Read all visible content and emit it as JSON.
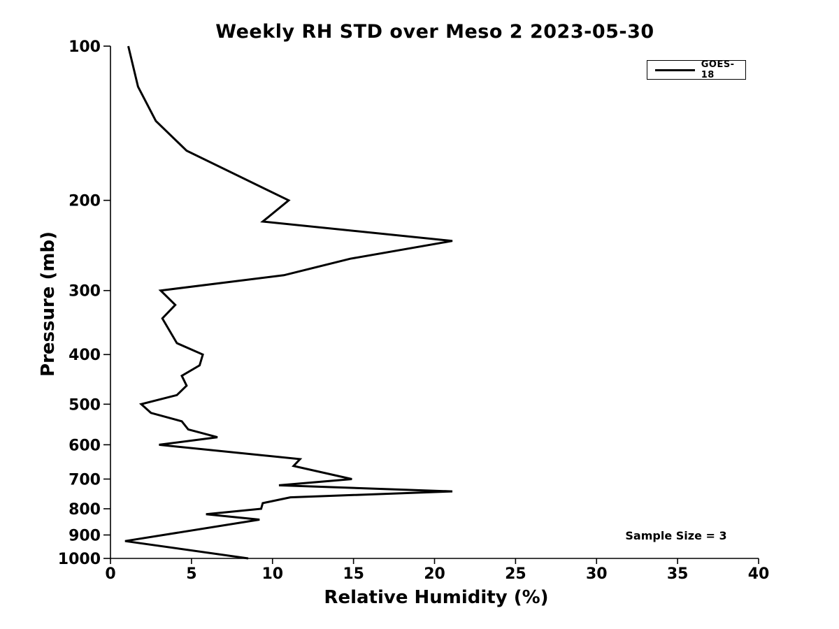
{
  "chart_data": {
    "type": "line",
    "title": "Weekly RH STD over Meso 2 2023-05-30",
    "xlabel": "Relative Humidity (%)",
    "ylabel": "Pressure (mb)",
    "xlim": [
      0,
      40
    ],
    "xticks": [
      0,
      5,
      10,
      15,
      20,
      25,
      30,
      35,
      40
    ],
    "ylim": [
      100,
      1000
    ],
    "yticks": [
      100,
      200,
      300,
      400,
      500,
      600,
      700,
      800,
      900,
      1000
    ],
    "yscale": "log",
    "y_inverted": true,
    "grid": false,
    "line_color": "#000000",
    "line_width": 3,
    "legend": {
      "position": "top-right",
      "entries": [
        "GOES-18"
      ]
    },
    "annotation": "Sample Size = 3",
    "series": [
      {
        "name": "GOES-18",
        "color": "#000000",
        "points_pressure_rh": [
          [
            100,
            1.1
          ],
          [
            120,
            1.7
          ],
          [
            140,
            2.8
          ],
          [
            160,
            4.7
          ],
          [
            200,
            11.0
          ],
          [
            220,
            9.4
          ],
          [
            240,
            21.1
          ],
          [
            260,
            14.8
          ],
          [
            280,
            10.7
          ],
          [
            300,
            3.1
          ],
          [
            320,
            4.0
          ],
          [
            340,
            3.2
          ],
          [
            380,
            4.1
          ],
          [
            400,
            5.7
          ],
          [
            420,
            5.5
          ],
          [
            440,
            4.4
          ],
          [
            460,
            4.7
          ],
          [
            480,
            4.1
          ],
          [
            500,
            1.9
          ],
          [
            520,
            2.5
          ],
          [
            540,
            4.4
          ],
          [
            560,
            4.8
          ],
          [
            580,
            6.6
          ],
          [
            600,
            3.0
          ],
          [
            640,
            11.7
          ],
          [
            660,
            11.3
          ],
          [
            700,
            14.9
          ],
          [
            720,
            10.4
          ],
          [
            740,
            21.1
          ],
          [
            760,
            11.1
          ],
          [
            780,
            9.4
          ],
          [
            800,
            9.3
          ],
          [
            820,
            5.9
          ],
          [
            840,
            9.2
          ],
          [
            925,
            0.9
          ],
          [
            1000,
            8.5
          ]
        ]
      }
    ]
  }
}
